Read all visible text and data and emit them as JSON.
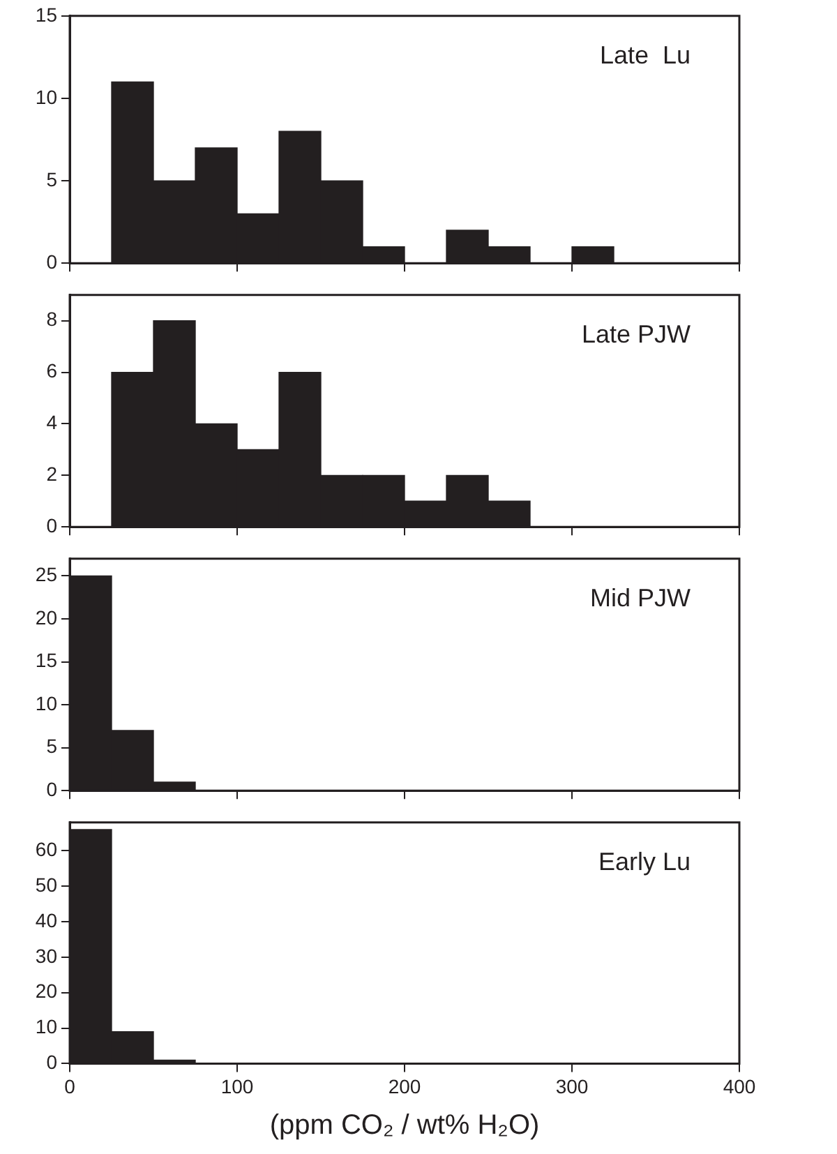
{
  "chart_data": [
    {
      "type": "histogram",
      "bins": [
        0,
        25,
        50,
        75,
        100,
        125,
        150,
        175,
        200,
        225,
        250,
        275,
        300,
        325,
        350,
        375,
        400
      ],
      "values": [
        0,
        11,
        5,
        7,
        3,
        8,
        5,
        1,
        0,
        2,
        1,
        0,
        1,
        0,
        0,
        0
      ],
      "color": "#231f20",
      "xlim": [
        0,
        400
      ],
      "xticks": [
        0,
        100,
        200,
        300,
        400
      ],
      "ylim": [
        0,
        15
      ],
      "yticks": [
        0,
        5,
        10,
        15
      ],
      "grid": false,
      "tick_labels": "y",
      "annotations": [
        "Late  Lu"
      ]
    },
    {
      "type": "histogram",
      "bins": [
        0,
        25,
        50,
        75,
        100,
        125,
        150,
        175,
        200,
        225,
        250,
        275,
        300,
        325,
        350,
        375,
        400
      ],
      "values": [
        0,
        6,
        8,
        4,
        3,
        6,
        2,
        2,
        1,
        2,
        1,
        0,
        0,
        0,
        0,
        0
      ],
      "color": "#231f20",
      "xlim": [
        0,
        400
      ],
      "xticks": [
        0,
        100,
        200,
        300,
        400
      ],
      "ylim": [
        0,
        9
      ],
      "yticks": [
        0,
        2,
        4,
        6,
        8
      ],
      "grid": false,
      "tick_labels": "y",
      "annotations": [
        "Late PJW"
      ]
    },
    {
      "type": "histogram",
      "bins": [
        0,
        25,
        50,
        75,
        100,
        125,
        150,
        175,
        200,
        225,
        250,
        275,
        300,
        325,
        350,
        375,
        400
      ],
      "values": [
        25,
        7,
        1,
        0,
        0,
        0,
        0,
        0,
        0,
        0,
        0,
        0,
        0,
        0,
        0,
        0
      ],
      "color": "#231f20",
      "xlim": [
        0,
        400
      ],
      "xticks": [
        0,
        100,
        200,
        300,
        400
      ],
      "ylim": [
        0,
        27
      ],
      "yticks": [
        0,
        5,
        10,
        15,
        20,
        25
      ],
      "grid": false,
      "tick_labels": "y",
      "annotations": [
        "Mid PJW"
      ]
    },
    {
      "type": "histogram",
      "bins": [
        0,
        25,
        50,
        75,
        100,
        125,
        150,
        175,
        200,
        225,
        250,
        275,
        300,
        325,
        350,
        375,
        400
      ],
      "values": [
        66,
        9,
        1,
        0,
        0,
        0,
        0,
        0,
        0,
        0,
        0,
        0,
        0,
        0,
        0,
        0
      ],
      "color": "#231f20",
      "xlim": [
        0,
        400
      ],
      "xticks": [
        0,
        100,
        200,
        300,
        400
      ],
      "ylim": [
        0,
        68
      ],
      "yticks": [
        0,
        10,
        20,
        30,
        40,
        50,
        60
      ],
      "grid": false,
      "xlabel": "(ppm CO₂ / wt% H₂O)",
      "annotations": [
        "Early Lu"
      ]
    }
  ]
}
